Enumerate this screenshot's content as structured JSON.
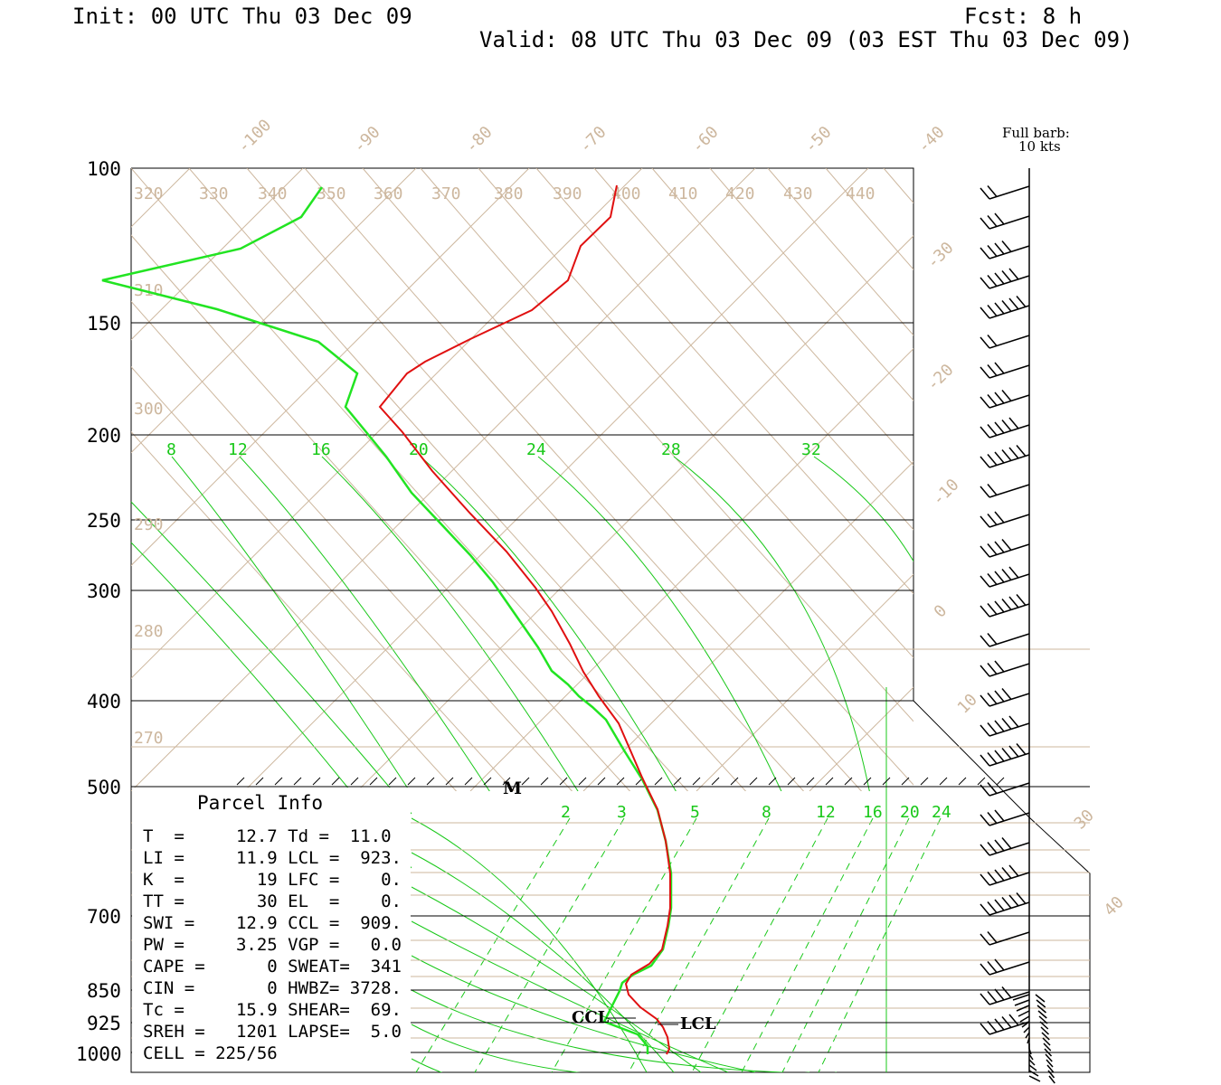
{
  "header": {
    "init": "Init: 00 UTC Thu 03 Dec 09",
    "fcst": "Fcst:    8 h",
    "valid": "Valid: 08 UTC Thu 03 Dec 09 (03 EST Thu 03 Dec 09)",
    "barb_note_1": "Full barb:",
    "barb_note_2": "10 kts"
  },
  "chart_data": {
    "type": "line",
    "pressure_labels": [
      "100",
      "150",
      "200",
      "250",
      "300",
      "400",
      "500",
      "700",
      "850",
      "925",
      "1000"
    ],
    "isotherm_labels": [
      "-100",
      "-90",
      "-80",
      "-70",
      "-60",
      "-50",
      "-40",
      "-30",
      "-20",
      "-10",
      "0",
      "10",
      "30",
      "40"
    ],
    "theta_labels": [
      "320",
      "330",
      "340",
      "350",
      "360",
      "370",
      "380",
      "390",
      "400",
      "410",
      "420",
      "430",
      "440",
      "310",
      "300",
      "290",
      "280",
      "270"
    ],
    "mixing_ratio_upper_labels": [
      "8",
      "12",
      "16",
      "20",
      "24",
      "28",
      "32"
    ],
    "mixing_ratio_lower_labels": [
      "2",
      "3",
      "5",
      "8",
      "12",
      "16",
      "20",
      "24"
    ],
    "markers": [
      "M",
      "CCL",
      "LCL"
    ],
    "temperature_color": "#e01010",
    "dewpoint_color": "#22e422",
    "isotherm_color": "#cdb79e",
    "mixing_ratio_color": "#19c819"
  },
  "parcel_info": {
    "title": "Parcel Info",
    "rows": [
      "T  =     12.7 Td =  11.0",
      "LI =     11.9 LCL =  923.",
      "K  =       19 LFC =    0.",
      "TT =       30 EL  =    0.",
      "SWI =    12.9 CCL =  909.",
      "PW =     3.25 VGP =   0.0",
      "CAPE =      0 SWEAT=  341",
      "CIN =       0 HWBZ= 3728.",
      "Tc =     15.9 SHEAR=  69.",
      "SREH =   1201 LAPSE=  5.0",
      "CELL = 225/56"
    ]
  }
}
